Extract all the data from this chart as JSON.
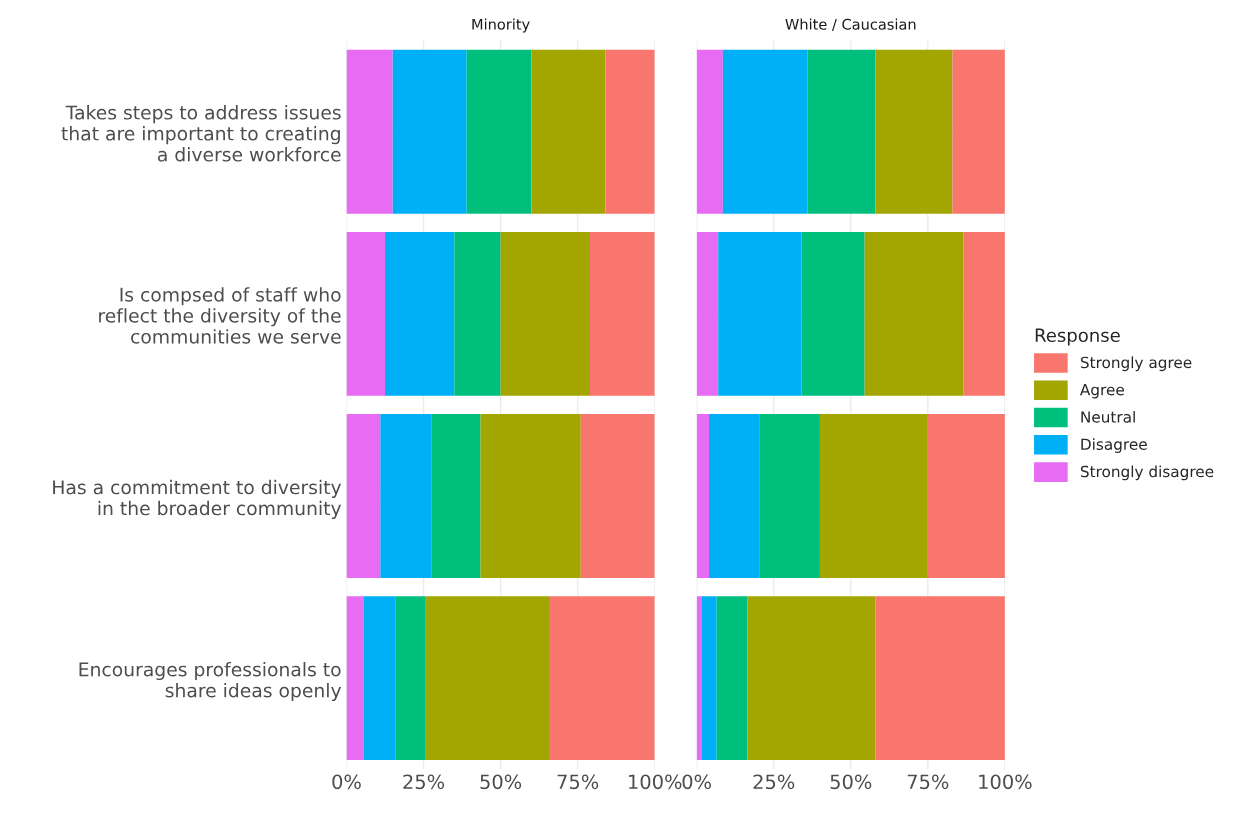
{
  "chart_data": [
    {
      "type": "bar",
      "orientation": "horizontal",
      "stacked": true,
      "title": "Minority",
      "categories": [
        "Takes steps to address issues\nthat are important to creating\na diverse workforce",
        "Is compsed of staff who\nreflect the diversity of the\ncommunities we serve",
        "Has a commitment to diversity\nin the broader community",
        "Encourages professionals to\nshare ideas openly"
      ],
      "series": [
        {
          "color": "#e76bf3",
          "values": [
            15,
            12.5,
            11,
            5.5
          ]
        },
        {
          "color": "#00b0f6",
          "values": [
            24,
            22.5,
            16.5,
            10.5
          ]
        },
        {
          "color": "#00bf7d",
          "values": [
            21,
            15,
            16,
            9.5
          ]
        },
        {
          "color": "#a3a500",
          "values": [
            24,
            29,
            32.5,
            40.5
          ]
        },
        {
          "color": "#f8766d",
          "values": [
            16,
            21,
            24,
            34
          ]
        }
      ],
      "xlim": [
        0,
        100
      ],
      "xticks": [
        {
          "value": 0,
          "label": "0%"
        },
        {
          "value": 25,
          "label": "25%"
        },
        {
          "value": 50,
          "label": "50%"
        },
        {
          "value": 75,
          "label": "75%"
        },
        {
          "value": 100,
          "label": "100%"
        }
      ],
      "grid": true
    },
    {
      "type": "bar",
      "orientation": "horizontal",
      "stacked": true,
      "title": "White / Caucasian",
      "legend_title": "Response",
      "categories": [
        null,
        null,
        null,
        null
      ],
      "series": [
        {
          "name": "Strongly disagree",
          "color": "#e76bf3",
          "values": [
            8.5,
            7,
            4,
            1.5
          ]
        },
        {
          "name": "Disagree",
          "color": "#00b0f6",
          "values": [
            27.5,
            27,
            16.5,
            5
          ]
        },
        {
          "name": "Neutral",
          "color": "#00bf7d",
          "values": [
            22,
            20.5,
            19.5,
            10
          ]
        },
        {
          "name": "Agree",
          "color": "#a3a500",
          "values": [
            25,
            32,
            35,
            41.5
          ]
        },
        {
          "name": "Strongly agree",
          "color": "#f8766d",
          "values": [
            17,
            13.5,
            25,
            42
          ]
        }
      ],
      "xlim": [
        0,
        100
      ],
      "xticks": [
        {
          "value": 0,
          "label": "0%"
        },
        {
          "value": 25,
          "label": "25%"
        },
        {
          "value": 50,
          "label": "50%"
        },
        {
          "value": 75,
          "label": "75%"
        },
        {
          "value": 100,
          "label": "100%"
        }
      ],
      "grid": true,
      "legend": "right",
      "tick_labels": "x"
    }
  ]
}
